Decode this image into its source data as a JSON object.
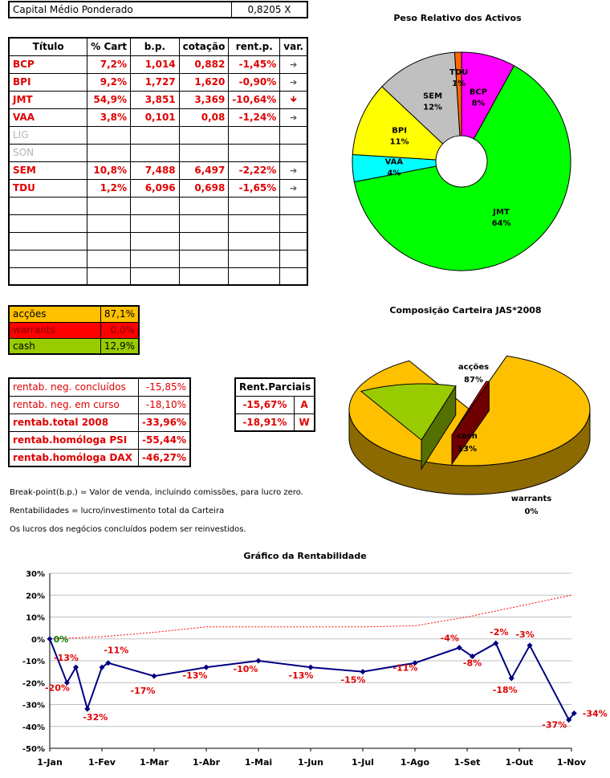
{
  "header": {
    "label": "Capital Médio Ponderado",
    "value": "0,8205 X"
  },
  "table": {
    "columns": [
      "Título",
      "% Cart",
      "b.p.",
      "cotação",
      "rent.p.",
      "var."
    ],
    "rows": [
      {
        "title": "BCP",
        "cart": "7,2%",
        "bp": "1,014",
        "cot": "0,882",
        "rent": "-1,45%",
        "var": "➔",
        "active": true
      },
      {
        "title": "BPI",
        "cart": "9,2%",
        "bp": "1,727",
        "cot": "1,620",
        "rent": "-0,90%",
        "var": "➔",
        "active": true
      },
      {
        "title": "JMT",
        "cart": "54,9%",
        "bp": "3,851",
        "cot": "3,369",
        "rent": "-10,64%",
        "var": "🡻",
        "active": true
      },
      {
        "title": "VAA",
        "cart": "3,8%",
        "bp": "0,101",
        "cot": "0,08",
        "rent": "-1,24%",
        "var": "➔",
        "active": true
      },
      {
        "title": "LIG",
        "cart": "",
        "bp": "",
        "cot": "",
        "rent": "",
        "var": "",
        "active": false
      },
      {
        "title": "SON",
        "cart": "",
        "bp": "",
        "cot": "",
        "rent": "",
        "var": "",
        "active": false
      },
      {
        "title": "SEM",
        "cart": "10,8%",
        "bp": "7,488",
        "cot": "6,497",
        "rent": "-2,22%",
        "var": "➔",
        "active": true
      },
      {
        "title": "TDU",
        "cart": "1,2%",
        "bp": "6,096",
        "cot": "0,698",
        "rent": "-1,65%",
        "var": "➔",
        "active": true
      },
      {
        "title": "",
        "cart": "",
        "bp": "",
        "cot": "",
        "rent": "",
        "var": "",
        "active": false
      },
      {
        "title": "",
        "cart": "",
        "bp": "",
        "cot": "",
        "rent": "",
        "var": "",
        "active": false
      },
      {
        "title": "",
        "cart": "",
        "bp": "",
        "cot": "",
        "rent": "",
        "var": "",
        "active": false
      },
      {
        "title": "",
        "cart": "",
        "bp": "",
        "cot": "",
        "rent": "",
        "var": "",
        "active": false
      },
      {
        "title": "",
        "cart": "",
        "bp": "",
        "cot": "",
        "rent": "",
        "var": "",
        "active": false
      }
    ]
  },
  "composition": [
    {
      "label": "acções",
      "value": "87,1%",
      "color": "#ffc000",
      "text": "#000000"
    },
    {
      "label": "warrants",
      "value": "0,0%",
      "color": "#ff0000",
      "text": "#800000"
    },
    {
      "label": "cash",
      "value": "12,9%",
      "color": "#99cc00",
      "text": "#000000"
    }
  ],
  "rentab": [
    {
      "label": "rentab. neg. concluídos",
      "value": "-15,85%",
      "bold": false
    },
    {
      "label": "rentab. neg. em curso",
      "value": "-18,10%",
      "bold": false
    },
    {
      "label": "rentab.total 2008",
      "value": "-33,96%",
      "bold": true
    },
    {
      "label": "rentab.homóloga PSI",
      "value": "-55,44%",
      "bold": true
    },
    {
      "label": "rentab.homóloga DAX",
      "value": "-46,27%",
      "bold": true
    }
  ],
  "parciais": {
    "title": "Rent.Parciais",
    "rows": [
      {
        "value": "-15,67%",
        "tag": "A"
      },
      {
        "value": "-18,91%",
        "tag": "W"
      }
    ]
  },
  "notes": [
    "Break-point(b.p.) = Valor de venda, incluindo comissões, para lucro zero.",
    "Rentabilidades = lucro/investimento total da Carteira",
    "Os lucros dos negócios concluídos podem ser reinvestidos."
  ],
  "chart_data": [
    {
      "type": "pie",
      "variant": "doughnut",
      "title": "Peso Relativo dos Activos",
      "slices": [
        {
          "label": "BCP",
          "value": 8,
          "text": "8%",
          "color": "#ff00ff"
        },
        {
          "label": "JMT",
          "value": 64,
          "text": "64%",
          "color": "#00ff00"
        },
        {
          "label": "VAA",
          "value": 4,
          "text": "4%",
          "color": "#00ffff"
        },
        {
          "label": "BPI",
          "value": 11,
          "text": "11%",
          "color": "#ffff00"
        },
        {
          "label": "SEM",
          "value": 12,
          "text": "12%",
          "color": "#c0c0c0"
        },
        {
          "label": "TDU",
          "value": 1,
          "text": "1%",
          "color": "#ff6600"
        }
      ]
    },
    {
      "type": "pie",
      "variant": "3d",
      "title": "Composição Carteira JAS*2008",
      "slices": [
        {
          "label": "acções",
          "value": 87,
          "text": "87%",
          "color": "#ffc000"
        },
        {
          "label": "cash",
          "value": 13,
          "text": "13%",
          "color": "#99cc00"
        },
        {
          "label": "warrants",
          "value": 0.4,
          "text": "0%",
          "color": "#cc0000"
        }
      ]
    },
    {
      "type": "line",
      "title": "Gráfico da Rentabilidade",
      "ylim": [
        -50,
        30
      ],
      "yticks": [
        30,
        20,
        10,
        0,
        -10,
        -20,
        -30,
        -40,
        -50
      ],
      "ytick_labels": [
        "30%",
        "20%",
        "10%",
        "0%",
        "-10%",
        "-20%",
        "-30%",
        "-40%",
        "-50%"
      ],
      "xlim": [
        0,
        10
      ],
      "xticks": [
        0,
        1,
        2,
        3,
        4,
        5,
        6,
        7,
        8,
        9,
        10
      ],
      "xtick_labels": [
        "1-Jan",
        "1-Fev",
        "1-Mar",
        "1-Abr",
        "1-Mai",
        "1-Jun",
        "1-Jul",
        "1-Ago",
        "1-Set",
        "1-Out",
        "1-Nov"
      ],
      "series": [
        {
          "style": "solid-markers",
          "color": "#000080",
          "points": [
            {
              "x": 0,
              "y": 0,
              "label": "0%",
              "label_color": "#008000"
            },
            {
              "x": 0.33,
              "y": -20,
              "label": "-20%"
            },
            {
              "x": 0.5,
              "y": -13,
              "label": "-13%"
            },
            {
              "x": 0.72,
              "y": -32,
              "label": "-32%"
            },
            {
              "x": 1.0,
              "y": -13
            },
            {
              "x": 1.12,
              "y": -11,
              "label": "-11%"
            },
            {
              "x": 2.0,
              "y": -17,
              "label": "-17%"
            },
            {
              "x": 3.0,
              "y": -13,
              "label": "-13%"
            },
            {
              "x": 4.0,
              "y": -10,
              "label": "-10%"
            },
            {
              "x": 5.0,
              "y": -13,
              "label": "-13%"
            },
            {
              "x": 6.0,
              "y": -15,
              "label": "-15%"
            },
            {
              "x": 7.0,
              "y": -11,
              "label": "-11%"
            },
            {
              "x": 7.85,
              "y": -4,
              "label": "-4%"
            },
            {
              "x": 8.1,
              "y": -8,
              "label": "-8%"
            },
            {
              "x": 8.55,
              "y": -2,
              "label": "-2%"
            },
            {
              "x": 8.85,
              "y": -18,
              "label": "-18%"
            },
            {
              "x": 9.2,
              "y": -3,
              "label": "-3%"
            },
            {
              "x": 9.95,
              "y": -37,
              "label": "-37%"
            },
            {
              "x": 10.05,
              "y": -34,
              "label": "-34%"
            }
          ]
        },
        {
          "style": "dashed",
          "color": "#ff0000",
          "points": [
            {
              "x": 0,
              "y": 0
            },
            {
              "x": 1,
              "y": 1
            },
            {
              "x": 2,
              "y": 3
            },
            {
              "x": 3,
              "y": 5.5
            },
            {
              "x": 4,
              "y": 5.5
            },
            {
              "x": 5,
              "y": 5.5
            },
            {
              "x": 6,
              "y": 5.5
            },
            {
              "x": 7,
              "y": 6
            },
            {
              "x": 8,
              "y": 10
            },
            {
              "x": 9,
              "y": 15
            },
            {
              "x": 10,
              "y": 20
            }
          ]
        }
      ]
    }
  ]
}
